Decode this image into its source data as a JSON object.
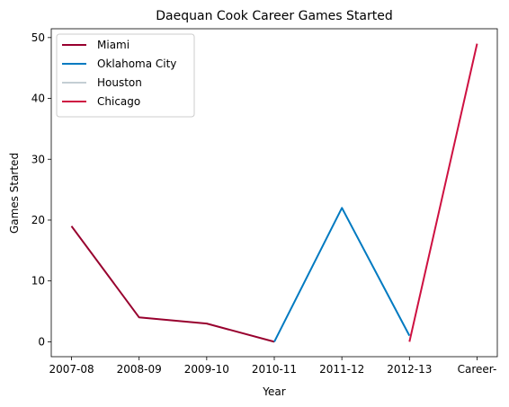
{
  "chart_data": {
    "type": "line",
    "title": "Daequan Cook Career Games Started",
    "xlabel": "Year",
    "ylabel": "Games Started",
    "categories": [
      "2007-08",
      "2008-09",
      "2009-10",
      "2010-11",
      "2011-12",
      "2012-13",
      "Career-"
    ],
    "ylim": [
      -2.45,
      51.45
    ],
    "yticks": [
      0,
      10,
      20,
      30,
      40,
      50
    ],
    "grid": false,
    "legend_position": "top-left",
    "series": [
      {
        "name": "Miami",
        "color": "#98002E",
        "points": [
          [
            0,
            19
          ],
          [
            1,
            4
          ],
          [
            2,
            3
          ],
          [
            3,
            0
          ]
        ]
      },
      {
        "name": "Oklahoma City",
        "color": "#007AC1",
        "points": [
          [
            3,
            0
          ],
          [
            4,
            22
          ],
          [
            5,
            1
          ]
        ]
      },
      {
        "name": "Houston",
        "color": "#C4CED4",
        "points": [
          [
            5,
            1
          ]
        ]
      },
      {
        "name": "Chicago",
        "color": "#CE1141",
        "points": [
          [
            5,
            0
          ],
          [
            6,
            49
          ]
        ]
      }
    ]
  }
}
